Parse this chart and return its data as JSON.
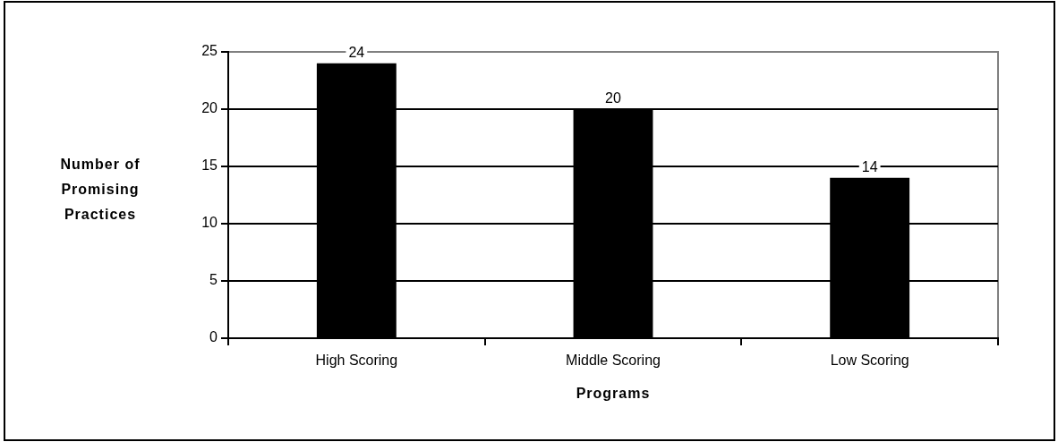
{
  "chart_data": {
    "type": "bar",
    "categories": [
      "High Scoring",
      "Middle Scoring",
      "Low Scoring"
    ],
    "values": [
      24,
      20,
      14
    ],
    "color": "#000000",
    "xlabel": "Programs",
    "ylabel": "Number of Promising Practices",
    "ylim": [
      0,
      25
    ],
    "yticks": [
      0,
      5,
      10,
      15,
      20,
      25
    ],
    "grid": "y",
    "data_labels": true
  }
}
